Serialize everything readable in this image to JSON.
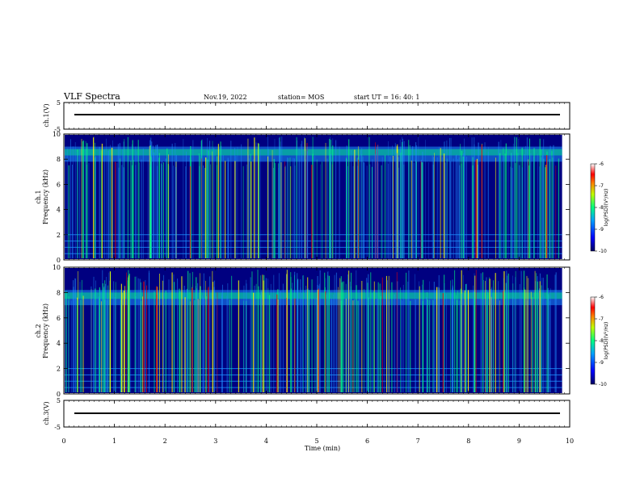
{
  "header": {
    "title": "VLF Spectra",
    "date": "Nov.19, 2022",
    "station": "station= MOS",
    "start": "start  UT =   16: 40: 1"
  },
  "chart_data": [
    {
      "type": "line",
      "name": "ch1-waveform",
      "ylabel": "ch.1(V)",
      "ylim": [
        -5,
        5
      ],
      "yticks": [
        "5",
        "-5"
      ],
      "x": [
        0,
        9.85
      ],
      "values": [
        0,
        0
      ]
    },
    {
      "type": "heatmap",
      "name": "ch1-spectrogram",
      "ylabel_line1": "ch.1",
      "ylabel_line2": "Frequency  (kHz)",
      "ylim": [
        0,
        10
      ],
      "yticks": [
        "0",
        "2",
        "4",
        "6",
        "8",
        "10"
      ],
      "xlim": [
        0,
        10
      ],
      "colorbar": {
        "label": "log(PSD)(V²/Hz)",
        "ticks": [
          "-6",
          "-7",
          "-8",
          "-9",
          "-10"
        ],
        "range": [
          -10,
          -6
        ]
      }
    },
    {
      "type": "heatmap",
      "name": "ch2-spectrogram",
      "ylabel_line1": "ch.2",
      "ylabel_line2": "Frequency  (kHz)",
      "ylim": [
        0,
        10
      ],
      "yticks": [
        "0",
        "2",
        "4",
        "6",
        "8",
        "10"
      ],
      "xlim": [
        0,
        10
      ],
      "colorbar": {
        "label": "log(PSD)(V²/Hz)",
        "ticks": [
          "-6",
          "-7",
          "-8",
          "-9",
          "-10"
        ],
        "range": [
          -10,
          -6
        ]
      }
    },
    {
      "type": "line",
      "name": "ch3-waveform",
      "ylabel": "ch.3(V)",
      "ylim": [
        -5,
        5
      ],
      "yticks": [
        "5",
        "-5"
      ],
      "x": [
        0,
        9.85
      ],
      "values": [
        0,
        0
      ]
    }
  ],
  "xaxis": {
    "label": "Time  (min)",
    "ticks": [
      "0",
      "1",
      "2",
      "3",
      "4",
      "5",
      "6",
      "7",
      "8",
      "9",
      "10"
    ],
    "range": [
      0,
      10
    ]
  },
  "colors": {
    "background": "#000080",
    "signal_low": "#1e90ff",
    "signal_mid": "#00ff7f",
    "signal_high": "#ffff00",
    "signal_peak": "#ff0000"
  }
}
